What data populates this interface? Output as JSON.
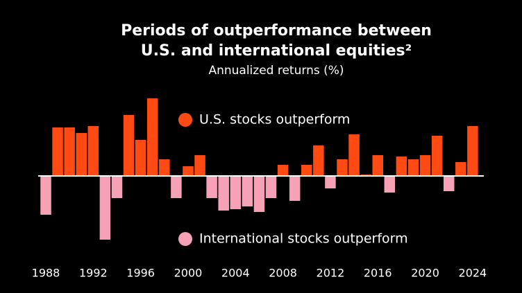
{
  "chart_data": {
    "type": "bar",
    "title": [
      "Periods of outperformance between",
      "U.S. and international equities²"
    ],
    "subtitle": "Annualized returns (%)",
    "categories": [
      "1988",
      null,
      null,
      null,
      "1992",
      null,
      null,
      null,
      "1996",
      null,
      null,
      null,
      "2000",
      null,
      null,
      null,
      "2004",
      null,
      null,
      null,
      "2008",
      null,
      null,
      null,
      "2012",
      null,
      null,
      null,
      "2016",
      null,
      null,
      null,
      "2020",
      null,
      null,
      null,
      "2024"
    ],
    "series": [
      {
        "name": "U.S. stocks outperform",
        "color": "#ff4a14",
        "values": [
          null,
          17.5,
          17.5,
          15.5,
          18,
          null,
          null,
          22,
          13,
          28,
          6,
          null,
          3.5,
          7.5,
          null,
          null,
          null,
          null,
          null,
          null,
          4,
          null,
          4,
          11,
          null,
          6,
          15,
          0.5,
          7.5,
          null,
          7,
          6,
          7.5,
          14.5,
          null,
          5,
          18
        ]
      },
      {
        "name": "International stocks outperform",
        "color": "#f7a1b6",
        "values": [
          -14,
          null,
          null,
          null,
          null,
          -23,
          -8,
          null,
          null,
          null,
          null,
          -8,
          null,
          null,
          -8,
          -12.5,
          -12,
          -11,
          -13,
          -8,
          null,
          -9,
          null,
          null,
          -4.5,
          null,
          null,
          null,
          null,
          -6,
          null,
          null,
          null,
          null,
          -5.5,
          null,
          null
        ]
      }
    ],
    "ylim": [
      -25,
      31
    ]
  }
}
